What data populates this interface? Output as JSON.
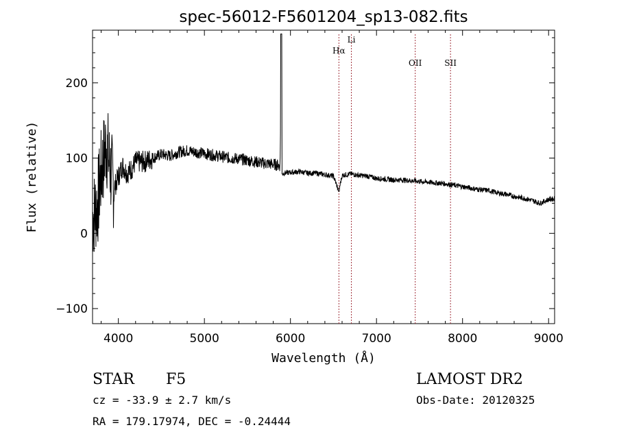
{
  "chart_data": {
    "type": "line",
    "title": "spec-56012-F5601204_sp13-082.fits",
    "xlabel": "Wavelength (Å)",
    "ylabel": "Flux (relative)",
    "xlim": [
      3700,
      9070
    ],
    "ylim": [
      -120,
      270
    ],
    "xticks": [
      4000,
      5000,
      6000,
      7000,
      8000,
      9000
    ],
    "yticks": [
      -100,
      0,
      100,
      200
    ],
    "grid": false,
    "line_color": "#000000",
    "marker_color": "#a0303a",
    "series": [
      {
        "x": [
          3700,
          3760,
          3800,
          3830,
          3860,
          3900,
          3950,
          4000,
          4050,
          4100,
          4150,
          4200,
          4300,
          4400,
          4500,
          4600,
          4700,
          4800,
          4900,
          5000,
          5100,
          5200,
          5300,
          5400,
          5500,
          5600,
          5700,
          5800,
          5880,
          5895,
          5900,
          5920,
          6000,
          6100,
          6200,
          6300,
          6400,
          6500,
          6562,
          6600,
          6700,
          6800,
          6900,
          7000,
          7100,
          7200,
          7300,
          7400,
          7500,
          7600,
          7700,
          7800,
          7900,
          8000,
          8100,
          8200,
          8300,
          8400,
          8500,
          8600,
          8700,
          8800,
          8900,
          9000,
          9070
        ],
        "y": [
          20,
          40,
          80,
          100,
          120,
          90,
          60,
          75,
          90,
          80,
          85,
          95,
          95,
          100,
          105,
          103,
          108,
          110,
          108,
          106,
          104,
          102,
          100,
          99,
          97,
          95,
          93,
          92,
          90,
          265,
          78,
          80,
          81,
          82,
          80,
          80,
          78,
          76,
          56,
          77,
          79,
          77,
          76,
          73,
          72,
          71,
          71,
          70,
          69,
          68,
          67,
          66,
          64,
          62,
          60,
          58,
          57,
          54,
          52,
          49,
          47,
          44,
          40,
          45,
          46
        ]
      }
    ],
    "lines": [
      {
        "label": "Hα",
        "x": 6563
      },
      {
        "label": "Li",
        "x": 6708
      },
      {
        "label": "OII",
        "x": 7450
      },
      {
        "label": "SII",
        "x": 7860
      }
    ]
  },
  "footer": {
    "object_class": "STAR",
    "subclass": "F5",
    "survey": "LAMOST DR2",
    "velocity": "cz = -33.9 ± 2.7 km/s",
    "obs_date": "Obs-Date: 20120325",
    "coords": "RA = 179.17974, DEC =  -0.24444"
  }
}
